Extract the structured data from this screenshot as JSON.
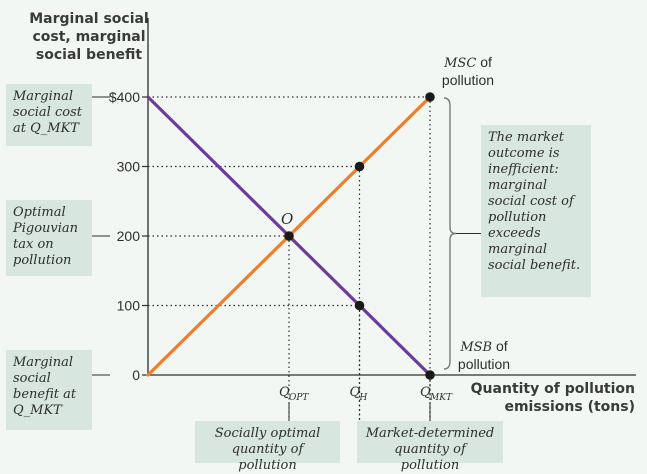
{
  "axes": {
    "y_title": "Marginal social cost, marginal social benefit",
    "x_title": "Quantity of pollution emissions (tons)"
  },
  "annotations": {
    "left_top": "Marginal social cost at Q_MKT",
    "left_mid": "Optimal Pigouvian tax on pollution",
    "left_bottom": "Marginal social benefit at Q_MKT",
    "right_box": "The market outcome is inefficient: marginal social cost of pollution exceeds marginal social benefit.",
    "bottom_opt": "Socially optimal quantity of pollution",
    "bottom_mkt": "Market-determined quantity of pollution",
    "msc_label_abbr": "MSC",
    "msc_label_rest": "of pollution",
    "msb_label_abbr": "MSB",
    "msb_label_rest": "of pollution",
    "point_o": "O"
  },
  "colors": {
    "msc": "#f07d2a",
    "msb": "#6a3d9a",
    "axis": "#2e2e2e",
    "box_bg": "#d7e6de"
  },
  "chart_data": {
    "type": "line",
    "ylim": [
      0,
      400
    ],
    "y_ticks": [
      {
        "value": 0,
        "label": "0"
      },
      {
        "value": 100,
        "label": "100"
      },
      {
        "value": 200,
        "label": "200"
      },
      {
        "value": 300,
        "label": "300"
      },
      {
        "value": 400,
        "label": "$400"
      }
    ],
    "x_ticks": [
      {
        "key": "opt",
        "label": "Q",
        "sub": "OPT",
        "pos": 0.5
      },
      {
        "key": "h",
        "label": "Q",
        "sub": "H",
        "pos": 0.75
      },
      {
        "key": "mkt",
        "label": "Q",
        "sub": "MKT",
        "pos": 1.0
      }
    ],
    "series": [
      {
        "name": "MSC of pollution",
        "key": "msc",
        "points": [
          [
            0,
            0
          ],
          [
            1.0,
            400
          ]
        ]
      },
      {
        "name": "MSB of pollution",
        "key": "msb",
        "points": [
          [
            0,
            400
          ],
          [
            1.0,
            0
          ]
        ]
      }
    ],
    "markers": [
      {
        "x": 0.5,
        "y": 200
      },
      {
        "x": 0.75,
        "y": 300
      },
      {
        "x": 0.75,
        "y": 100
      },
      {
        "x": 1.0,
        "y": 400
      },
      {
        "x": 1.0,
        "y": 0
      }
    ],
    "grid": false
  }
}
